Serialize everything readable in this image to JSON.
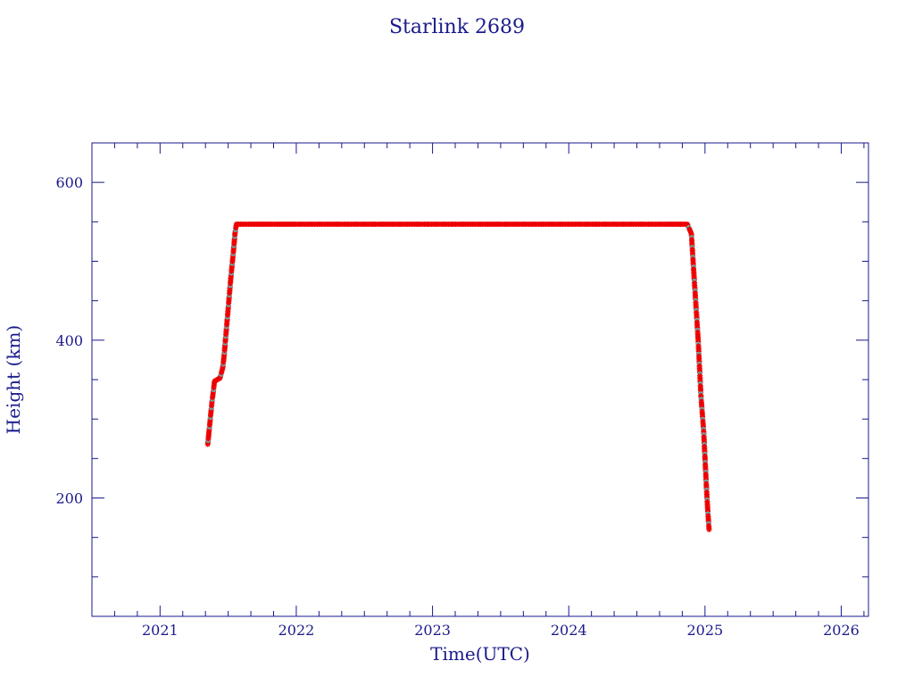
{
  "chart_data": {
    "type": "scatter",
    "title": "Starlink 2689",
    "xlabel": "Time(UTC)",
    "ylabel": "Height (km)",
    "xlim": [
      2020.5,
      2026.2
    ],
    "ylim": [
      50,
      650
    ],
    "x_ticks": [
      2021,
      2022,
      2023,
      2024,
      2025,
      2026
    ],
    "y_ticks": [
      200,
      400,
      600
    ],
    "grid": false,
    "colors": {
      "frame": "#1a1a8c",
      "series_main": "#ee0000",
      "series_alt": "#40e0e0"
    },
    "series": [
      {
        "x": [
          2021.35,
          2021.36,
          2021.38,
          2021.4,
          2021.42,
          2021.44,
          2021.46,
          2021.47,
          2021.48,
          2021.5,
          2021.52,
          2021.54,
          2021.55,
          2021.56,
          2021.62,
          2021.8,
          2022.0,
          2022.3,
          2022.6,
          2022.9,
          2023.2,
          2023.5,
          2023.8,
          2024.1,
          2024.4,
          2024.7,
          2024.87,
          2024.9,
          2024.92,
          2024.95,
          2024.97,
          2024.99,
          2025.0,
          2025.01,
          2025.02,
          2025.03
        ],
        "y": [
          268,
          285,
          320,
          348,
          350,
          352,
          365,
          380,
          400,
          440,
          480,
          515,
          535,
          547,
          547,
          547,
          547,
          547,
          547,
          547,
          547,
          547,
          547,
          547,
          547,
          547,
          547,
          535,
          480,
          400,
          330,
          285,
          250,
          215,
          185,
          160
        ]
      }
    ]
  }
}
